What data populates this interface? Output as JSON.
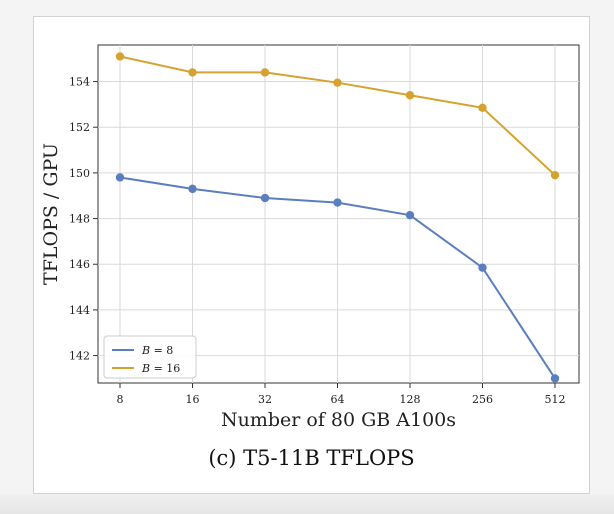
{
  "caption": "(c) T5-11B TFLOPS",
  "chart_data": {
    "type": "line",
    "xlabel": "Number of 80 GB A100s",
    "ylabel": "TFLOPS / GPU",
    "categories": [
      "8",
      "16",
      "32",
      "64",
      "128",
      "256",
      "512"
    ],
    "y_ticks": [
      142,
      144,
      146,
      148,
      150,
      152,
      154
    ],
    "ylim": [
      140.8,
      155.6
    ],
    "grid": true,
    "legend_position": "bottom-left",
    "series": [
      {
        "name": "B = 8",
        "var": "B",
        "value": "= 8",
        "color": "#5b7fbe",
        "values": [
          149.8,
          149.3,
          148.9,
          148.7,
          148.15,
          145.85,
          141.0
        ]
      },
      {
        "name": "B = 16",
        "var": "B",
        "value": "= 16",
        "color": "#d6a22f",
        "values": [
          155.1,
          154.4,
          154.4,
          153.95,
          153.4,
          152.85,
          149.9
        ]
      }
    ]
  }
}
